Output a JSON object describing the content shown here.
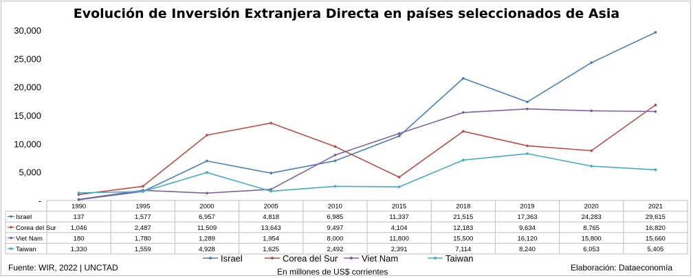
{
  "chart_data": {
    "type": "line",
    "title": "Evolución de Inversión Extranjera Directa en países seleccionados de Asia",
    "xlabel": "",
    "ylabel": "",
    "categories": [
      "1990",
      "1995",
      "2000",
      "2005",
      "2010",
      "2015",
      "2018",
      "2019",
      "2020",
      "2021"
    ],
    "ylim": [
      0,
      30000
    ],
    "y_ticks": [
      "-",
      "5,000",
      "10,000",
      "15,000",
      "20,000",
      "25,000",
      "30,000"
    ],
    "grid": false,
    "legend_position": "bottom",
    "series": [
      {
        "name": "Israel",
        "color": "#4a7ebb",
        "values": [
          137,
          1577,
          6957,
          4818,
          6985,
          11337,
          21515,
          17363,
          24283,
          29615
        ],
        "labels": [
          "137",
          "1,577",
          "6,957",
          "4,818",
          "6,985",
          "11,337",
          "21,515",
          "17,363",
          "24,283",
          "29,615"
        ]
      },
      {
        "name": "Corea del Sur",
        "color": "#be4b48",
        "values": [
          1046,
          2487,
          11509,
          13643,
          9497,
          4104,
          12183,
          9634,
          8765,
          16820
        ],
        "labels": [
          "1,046",
          "2,487",
          "11,509",
          "13,643",
          "9,497",
          "4,104",
          "12,183",
          "9,634",
          "8,765",
          "16,820"
        ]
      },
      {
        "name": "Viet Nam",
        "color": "#7d60a0",
        "values": [
          180,
          1780,
          1289,
          1954,
          8000,
          11800,
          15500,
          16120,
          15800,
          15660
        ],
        "labels": [
          "180",
          "1,780",
          "1,289",
          "1,954",
          "8,000",
          "11,800",
          "15,500",
          "16,120",
          "15,800",
          "15,660"
        ]
      },
      {
        "name": "Taiwan",
        "color": "#46aac5",
        "values": [
          1330,
          1559,
          4928,
          1625,
          2492,
          2391,
          7114,
          8240,
          6053,
          5405
        ],
        "labels": [
          "1,330",
          "1,559",
          "4,928",
          "1,625",
          "2,492",
          "2,391",
          "7,114",
          "8,240",
          "6,053",
          "5,405"
        ]
      }
    ],
    "source": "Fuente: WIR, 2022 | UNCTAD",
    "unit_note": "En millones de US$ corrientes",
    "credit": "Elaboración: Dataeconomía"
  }
}
